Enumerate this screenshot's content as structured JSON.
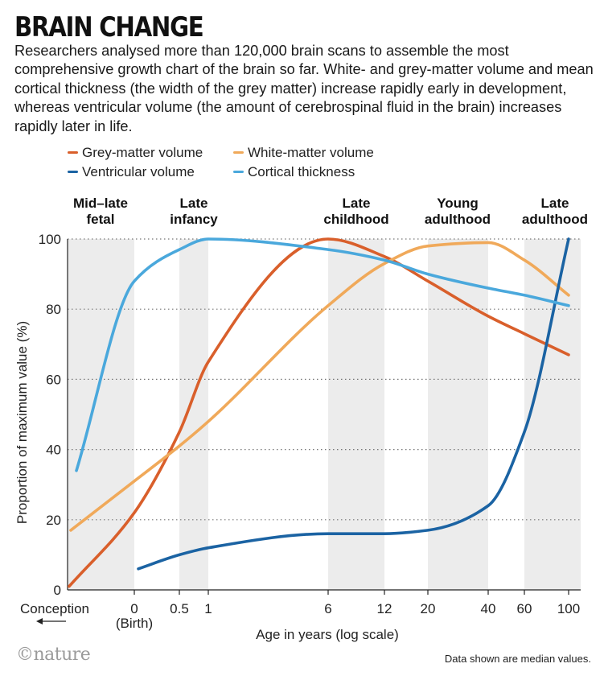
{
  "header": {
    "title": "BRAIN CHANGE",
    "intro": "Researchers analysed more than 120,000 brain scans to assemble the most comprehensive growth chart of the brain so far. White- and grey-matter volume and mean cortical thickness (the width of the grey matter) increase rapidly early in development, whereas ventricular volume (the amount of cerebrospinal fluid in the brain) increases rapidly later in life."
  },
  "footer": {
    "logo": "©nature",
    "note": "Data shown are median values."
  },
  "colors": {
    "grey_matter": "#d95f2b",
    "white_matter": "#f0a95a",
    "ventricular": "#1b63a3",
    "cortical": "#4aa8dc",
    "band": "#ececec"
  },
  "chart_data": {
    "type": "line",
    "title": "",
    "xlabel": "Age in years (log scale)",
    "ylabel": "Proportion of maximum value (%)",
    "ylim": [
      0,
      100
    ],
    "yticks": [
      0,
      20,
      40,
      60,
      80,
      100
    ],
    "grid": "horizontal-dotted",
    "legend_position": "top-left",
    "x_scale": "log (age from conception)",
    "x_ticks": [
      {
        "label": "Conception",
        "sub": ""
      },
      {
        "label": "0",
        "sub": "(Birth)"
      },
      {
        "label": "0.5",
        "sub": ""
      },
      {
        "label": "1",
        "sub": ""
      },
      {
        "label": "6",
        "sub": ""
      },
      {
        "label": "12",
        "sub": ""
      },
      {
        "label": "20",
        "sub": ""
      },
      {
        "label": "40",
        "sub": ""
      },
      {
        "label": "60",
        "sub": ""
      },
      {
        "label": "100",
        "sub": ""
      }
    ],
    "stage_bands": [
      {
        "line1": "Mid–late",
        "line2": "fetal"
      },
      {
        "line1": "Late",
        "line2": "infancy"
      },
      {
        "line1": "Late",
        "line2": "childhood"
      },
      {
        "line1": "Young",
        "line2": "adulthood"
      },
      {
        "line1": "Late",
        "line2": "adulthood"
      }
    ],
    "series": [
      {
        "name": "Grey-matter volume",
        "color": "#d95f2b",
        "x": [
          "Conception",
          "0",
          "0.5",
          "1",
          "6",
          "12",
          "20",
          "40",
          "60",
          "100"
        ],
        "values": [
          1,
          22,
          45,
          65,
          100,
          95,
          88,
          78,
          73,
          67
        ]
      },
      {
        "name": "White-matter volume",
        "color": "#f0a95a",
        "x": [
          "Conception",
          "0",
          "0.5",
          "1",
          "6",
          "12",
          "20",
          "40",
          "60",
          "100"
        ],
        "values": [
          17,
          31,
          41,
          48,
          81,
          93,
          98,
          99,
          94,
          84
        ]
      },
      {
        "name": "Ventricular volume",
        "color": "#1b63a3",
        "x": [
          "0",
          "0.5",
          "1",
          "6",
          "12",
          "20",
          "40",
          "60",
          "100"
        ],
        "values": [
          6,
          10,
          12,
          16,
          16,
          17,
          24,
          45,
          100
        ]
      },
      {
        "name": "Cortical thickness",
        "color": "#4aa8dc",
        "x": [
          "Conception",
          "0",
          "0.5",
          "1",
          "6",
          "12",
          "20",
          "40",
          "60",
          "100"
        ],
        "values": [
          34,
          88,
          97,
          100,
          97,
          94,
          90,
          86,
          84,
          81
        ]
      }
    ]
  }
}
